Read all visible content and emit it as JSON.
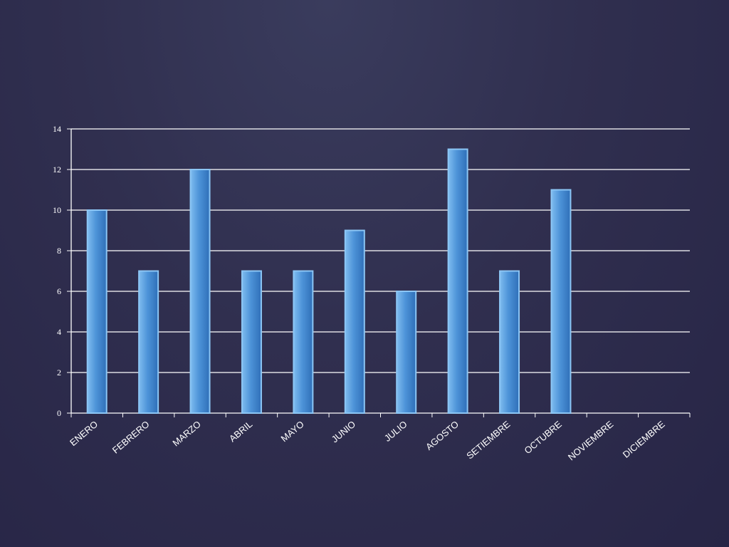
{
  "colors": {
    "background": "#302f4f",
    "bar_fill": "#4a8fd4",
    "bar_edge": "#8cc6f5",
    "grid": "#ffffff",
    "text": "#ffffff"
  },
  "chart_data": {
    "type": "bar",
    "title": "",
    "xlabel": "",
    "ylabel": "",
    "ylim": [
      0,
      14
    ],
    "yticks": [
      0,
      2,
      4,
      6,
      8,
      10,
      12,
      14
    ],
    "grid": true,
    "legend": "none",
    "categories": [
      "ENERO",
      "FEBRERO",
      "MARZO",
      "ABRIL",
      "MAYO",
      "JUNIO",
      "JULIO",
      "AGOSTO",
      "SETIEMBRE",
      "OCTUBRE",
      "NOVIEMBRE",
      "DICIEMBRE"
    ],
    "values": [
      10,
      7,
      12,
      7,
      7,
      9,
      6,
      13,
      7,
      11,
      null,
      null
    ]
  }
}
